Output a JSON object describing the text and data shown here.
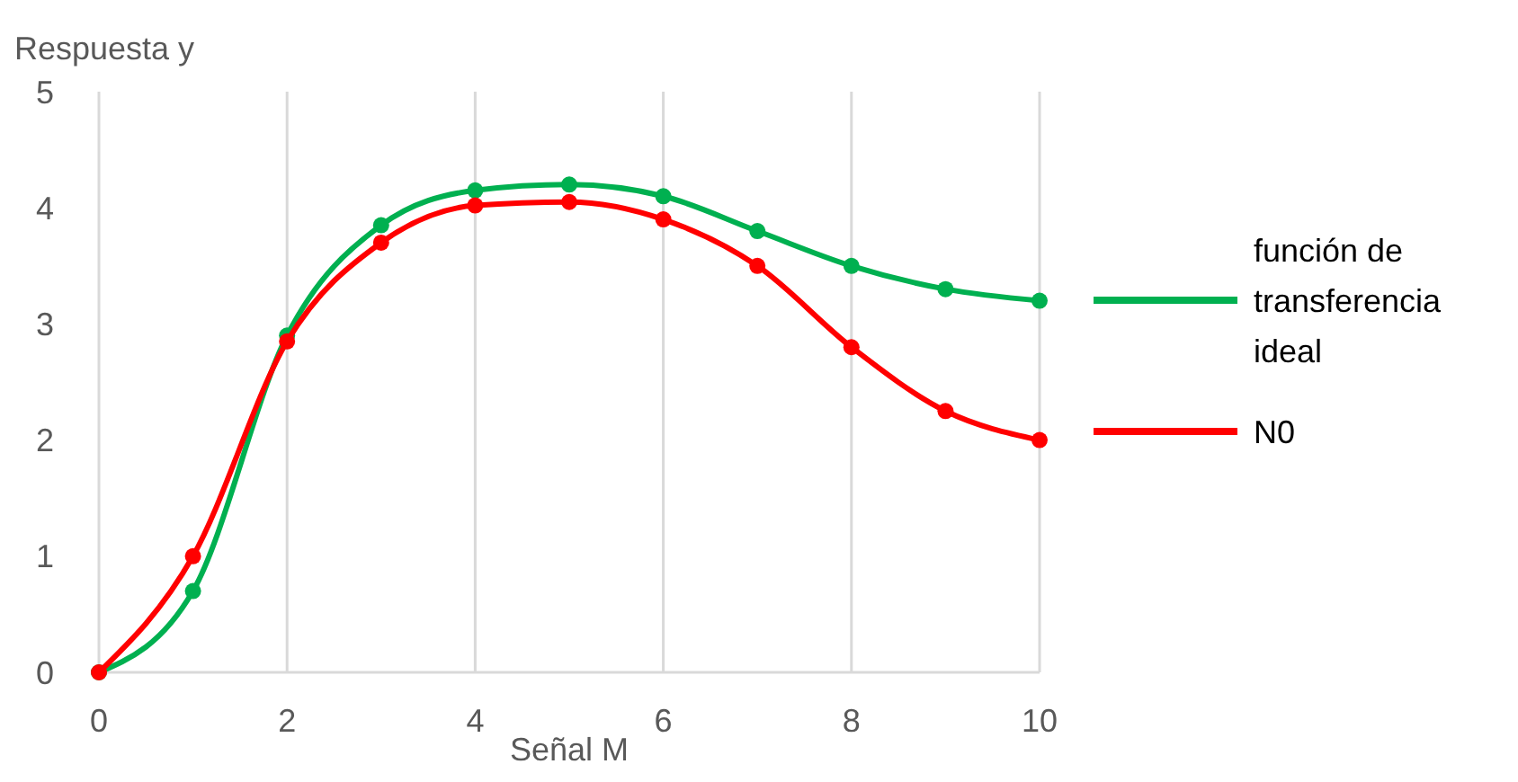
{
  "chart_data": {
    "type": "line",
    "xlabel": "Señal M",
    "ylabel": "Respuesta y",
    "x": [
      0,
      1,
      2,
      3,
      4,
      5,
      6,
      7,
      8,
      9,
      10
    ],
    "series": [
      {
        "name": "función de transferencia ideal",
        "color": "#00b050",
        "values": [
          0,
          0.7,
          2.9,
          3.85,
          4.15,
          4.2,
          4.1,
          3.8,
          3.5,
          3.3,
          3.2
        ]
      },
      {
        "name": "N0",
        "color": "#ff0000",
        "values": [
          0,
          1.0,
          2.85,
          3.7,
          4.02,
          4.05,
          3.9,
          3.5,
          2.8,
          2.25,
          2.0
        ]
      }
    ],
    "xlim": [
      0,
      10
    ],
    "xticks": [
      0,
      2,
      4,
      6,
      8,
      10
    ],
    "ylim": [
      0,
      5
    ],
    "yticks": [
      0,
      1,
      2,
      3,
      4,
      5
    ],
    "grid": "x",
    "legend": "right",
    "marker": "circle",
    "line_style": "solid"
  }
}
